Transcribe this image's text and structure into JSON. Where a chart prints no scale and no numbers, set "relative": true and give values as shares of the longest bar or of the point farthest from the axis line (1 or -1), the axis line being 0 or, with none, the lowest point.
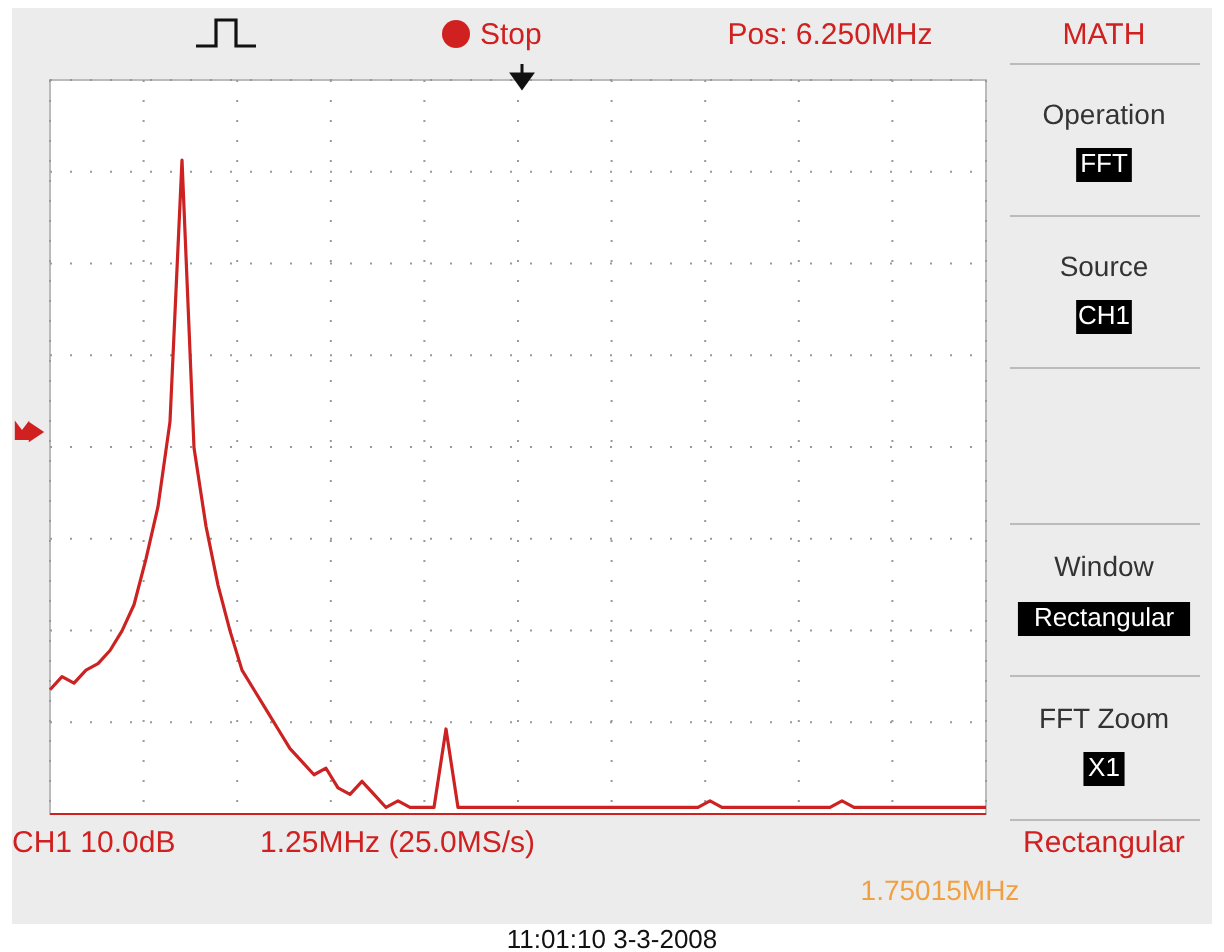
{
  "chart_data": {
    "type": "line",
    "relative": true,
    "grid": true,
    "line_style": "solid",
    "categories": [
      null,
      null,
      null,
      null,
      null,
      null,
      null,
      null,
      null,
      null,
      null,
      null,
      null,
      null,
      null,
      null,
      null,
      null,
      null,
      null,
      null,
      null,
      null,
      null,
      null,
      null,
      null,
      null,
      null,
      null,
      null,
      null,
      null,
      null,
      null,
      null,
      null,
      null,
      null,
      null,
      null,
      null,
      null,
      null,
      null,
      null,
      null,
      null,
      null,
      null,
      null,
      null,
      null,
      null,
      null,
      null,
      null,
      null,
      null,
      null,
      null,
      null,
      null,
      null,
      null,
      null,
      null,
      null,
      null,
      null,
      null,
      null,
      null,
      null,
      null,
      null,
      null,
      null,
      null
    ],
    "series": [
      {
        "color": "#cc2222",
        "values": [
          0.19,
          0.21,
          0.2,
          0.22,
          0.23,
          0.25,
          0.28,
          0.32,
          0.39,
          0.47,
          0.6,
          1,
          0.56,
          0.44,
          0.35,
          0.28,
          0.22,
          0.19,
          0.16,
          0.13,
          0.1,
          0.08,
          0.06,
          0.07,
          0.04,
          0.03,
          0.05,
          0.03,
          0.01,
          0.02,
          0.01,
          0.01,
          0.01,
          0.13,
          0.01,
          0.01,
          0.01,
          0.01,
          0.01,
          0.01,
          0.01,
          0.01,
          0.01,
          0.01,
          0.01,
          0.01,
          0.01,
          0.01,
          0.01,
          0.01,
          0.01,
          0.01,
          0.01,
          0.01,
          0.01,
          0.02,
          0.01,
          0.01,
          0.01,
          0.01,
          0.01,
          0.01,
          0.01,
          0.01,
          0.01,
          0.01,
          0.02,
          0.01,
          0.01,
          0.01,
          0.01,
          0.01,
          0.01,
          0.01,
          0.01,
          0.01,
          0.01,
          0.01,
          0.01
        ]
      }
    ],
    "annotations": [
      "Stop",
      "Pos: 6.250MHz",
      "MATH",
      "Operation",
      "FFT",
      "Source",
      "CH1",
      "Window",
      "Rectangular",
      "FFT Zoom",
      "X1",
      "CH1 10.0dB",
      "1.25MHz (25.0MS/s)",
      "Rectangular",
      "1.75015MHz",
      "11:01:10  3-3-2008"
    ]
  }
}
